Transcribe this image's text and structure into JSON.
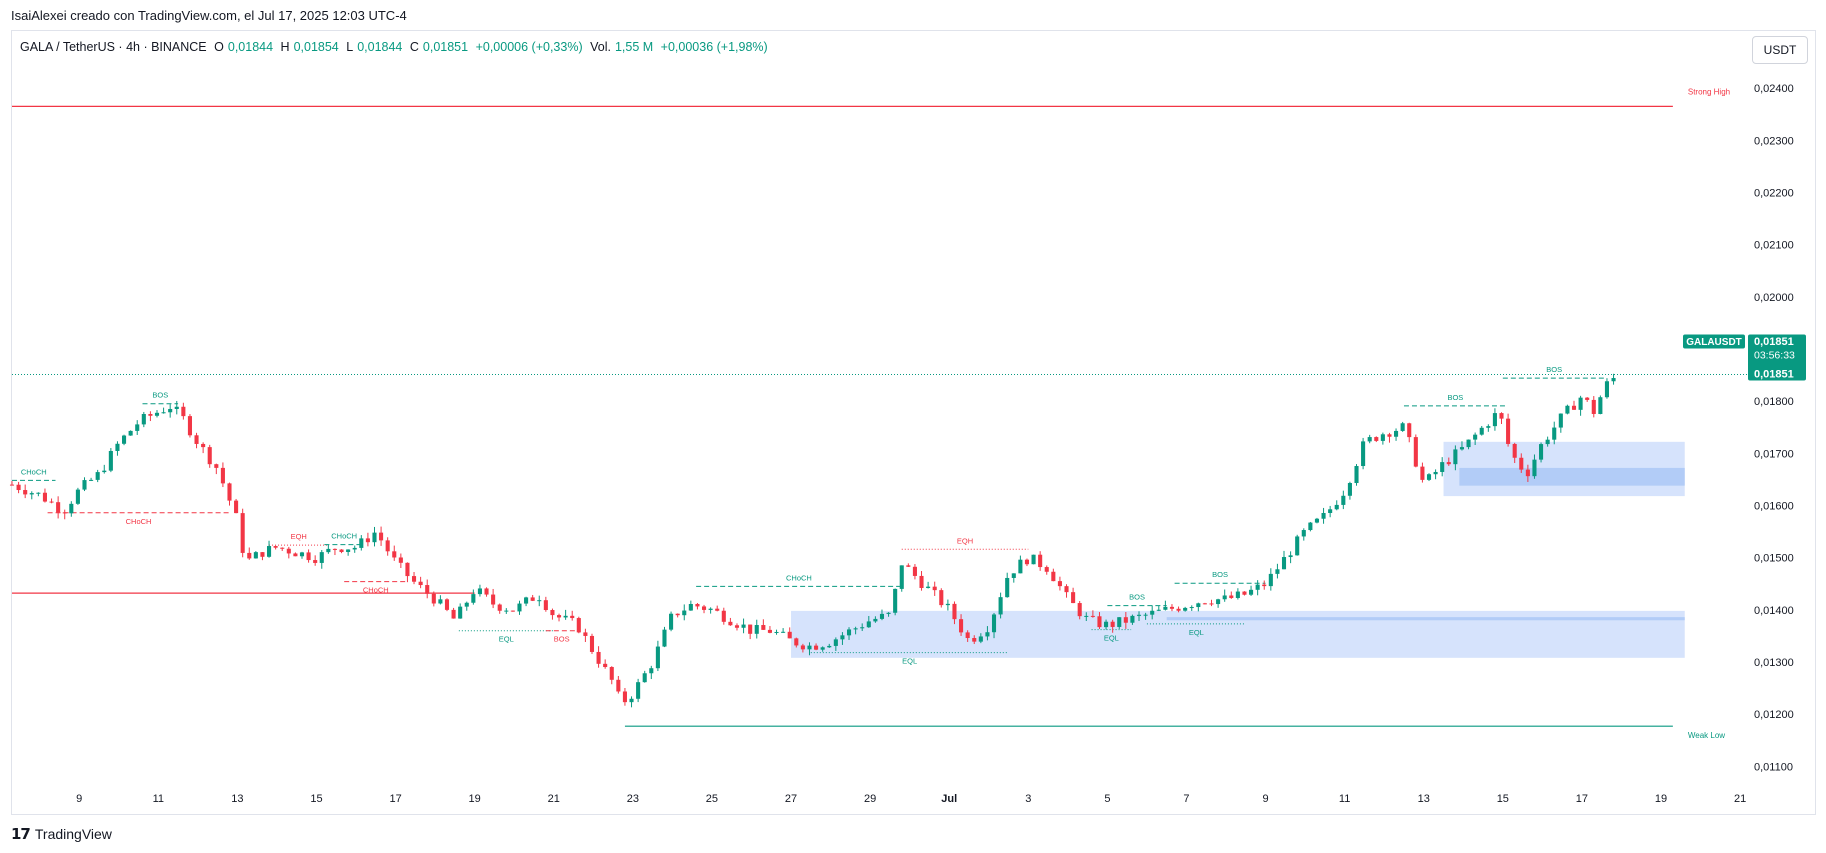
{
  "header": {
    "created_by": "IsaiAlexei creado con TradingView.com, el Jul 17, 2025 12:03 UTC-4"
  },
  "legend": {
    "symbol": "GALA / TetherUS · 4h · BINANCE",
    "o_label": "O",
    "o_val": "0,01844",
    "h_label": "H",
    "h_val": "0,01854",
    "l_label": "L",
    "l_val": "0,01844",
    "c_label": "C",
    "c_val": "0,01851",
    "change": "+0,00006 (+0,33%)",
    "vol_label": "Vol.",
    "vol_val": "1,55 M",
    "vol_change": "+0,00036 (+1,98%)"
  },
  "unit_button": "USDT",
  "branding": "TradingView",
  "colors": {
    "up": "#089981",
    "down": "#f23645",
    "zone": "#c8dafb",
    "zone_dark": "#a9c5f5"
  },
  "chart_data": {
    "type": "candlestick",
    "symbol": "GALAUSDT",
    "interval": "4h",
    "ylim": [
      0.0107,
      0.0245
    ],
    "yticks": [
      "0,02400",
      "0,02300",
      "0,02200",
      "0,02100",
      "0,02000",
      "0,01800",
      "0,01700",
      "0,01600",
      "0,01500",
      "0,01400",
      "0,01300",
      "0,01200",
      "0,01100"
    ],
    "ytick_values": [
      0.024,
      0.023,
      0.022,
      0.021,
      0.02,
      0.018,
      0.017,
      0.016,
      0.015,
      0.014,
      0.013,
      0.012,
      0.011
    ],
    "xticks": [
      "9",
      "11",
      "13",
      "15",
      "17",
      "19",
      "21",
      "23",
      "25",
      "27",
      "29",
      "Jul",
      "3",
      "5",
      "7",
      "9",
      "11",
      "13",
      "15",
      "17",
      "19",
      "21"
    ],
    "xtick_days": [
      0,
      2,
      4,
      6,
      8,
      10,
      12,
      14,
      16,
      18,
      20,
      22,
      24,
      26,
      28,
      30,
      32,
      34,
      36,
      38,
      40,
      42
    ],
    "x_start_day": -1.7,
    "x_end_day": 42.2,
    "last_price_tag": {
      "name": "GALAUSDT",
      "price": "0,01851",
      "countdown": "03:56:33",
      "price2": "0,01851",
      "value": 0.01851
    },
    "key_points": [
      [
        -1.7,
        0.0164
      ],
      [
        -1.0,
        0.0162
      ],
      [
        -0.4,
        0.0159
      ],
      [
        0.0,
        0.0163
      ],
      [
        0.5,
        0.0166
      ],
      [
        1.0,
        0.0172
      ],
      [
        1.5,
        0.0176
      ],
      [
        2.0,
        0.0178
      ],
      [
        2.3,
        0.0179
      ],
      [
        2.6,
        0.0177
      ],
      [
        3.0,
        0.0172
      ],
      [
        3.5,
        0.0167
      ],
      [
        4.0,
        0.0157
      ],
      [
        4.2,
        0.0149
      ],
      [
        4.6,
        0.0151
      ],
      [
        5.0,
        0.0152
      ],
      [
        5.5,
        0.0151
      ],
      [
        6.0,
        0.015
      ],
      [
        6.5,
        0.0152
      ],
      [
        7.0,
        0.0152
      ],
      [
        7.5,
        0.0155
      ],
      [
        8.0,
        0.0149
      ],
      [
        8.5,
        0.0145
      ],
      [
        9.0,
        0.0142
      ],
      [
        9.5,
        0.0138
      ],
      [
        10.0,
        0.0144
      ],
      [
        10.5,
        0.0141
      ],
      [
        11.0,
        0.014
      ],
      [
        11.6,
        0.0143
      ],
      [
        12.0,
        0.0139
      ],
      [
        12.6,
        0.0137
      ],
      [
        13.0,
        0.0132
      ],
      [
        13.5,
        0.0126
      ],
      [
        13.7,
        0.0122
      ],
      [
        14.0,
        0.0124
      ],
      [
        14.5,
        0.013
      ],
      [
        15.0,
        0.0139
      ],
      [
        15.5,
        0.0141
      ],
      [
        16.0,
        0.014
      ],
      [
        16.5,
        0.0138
      ],
      [
        17.0,
        0.0136
      ],
      [
        17.5,
        0.0136
      ],
      [
        18.0,
        0.0134
      ],
      [
        18.5,
        0.0133
      ],
      [
        19.0,
        0.0134
      ],
      [
        19.5,
        0.0136
      ],
      [
        20.0,
        0.0138
      ],
      [
        20.5,
        0.0139
      ],
      [
        20.8,
        0.0149
      ],
      [
        21.2,
        0.0146
      ],
      [
        21.6,
        0.0143
      ],
      [
        22.0,
        0.014
      ],
      [
        22.5,
        0.0134
      ],
      [
        23.0,
        0.0137
      ],
      [
        23.5,
        0.0147
      ],
      [
        24.0,
        0.015
      ],
      [
        24.5,
        0.0148
      ],
      [
        25.0,
        0.0142
      ],
      [
        25.5,
        0.0138
      ],
      [
        26.0,
        0.0137
      ],
      [
        26.5,
        0.0138
      ],
      [
        27.0,
        0.0139
      ],
      [
        27.5,
        0.014
      ],
      [
        28.0,
        0.0141
      ],
      [
        28.5,
        0.0142
      ],
      [
        29.0,
        0.0142
      ],
      [
        29.5,
        0.0143
      ],
      [
        30.0,
        0.0145
      ],
      [
        30.5,
        0.015
      ],
      [
        31.0,
        0.0155
      ],
      [
        31.5,
        0.0158
      ],
      [
        32.0,
        0.0163
      ],
      [
        32.5,
        0.0172
      ],
      [
        33.0,
        0.0174
      ],
      [
        33.5,
        0.0175
      ],
      [
        34.0,
        0.0164
      ],
      [
        34.5,
        0.0168
      ],
      [
        35.0,
        0.0171
      ],
      [
        35.5,
        0.0175
      ],
      [
        35.9,
        0.0178
      ],
      [
        36.2,
        0.017
      ],
      [
        36.6,
        0.0166
      ],
      [
        37.0,
        0.0172
      ],
      [
        37.5,
        0.0177
      ],
      [
        38.0,
        0.0181
      ],
      [
        38.3,
        0.0178
      ],
      [
        38.6,
        0.0183
      ],
      [
        38.9,
        0.0185
      ]
    ],
    "levels": [
      {
        "label": "Strong High",
        "value": 0.02365,
        "color": "#f23645",
        "from_day": -1.7,
        "to_day": 40.3
      },
      {
        "label": "",
        "value": 0.01432,
        "color": "#f23645",
        "from_day": -1.7,
        "to_day": 10.0
      },
      {
        "label": "Weak Low",
        "value": 0.01177,
        "color": "#089981",
        "from_day": 13.8,
        "to_day": 40.3
      }
    ],
    "zones": [
      {
        "from_day": 34.5,
        "to_day": 40.6,
        "low": 0.01618,
        "high": 0.01722,
        "dark_low": 0.01638,
        "dark_high": 0.01672
      },
      {
        "from_day": 18.0,
        "to_day": 40.6,
        "low": 0.01308,
        "high": 0.01398,
        "dark_low": 0.0138,
        "dark_high": 0.01386
      }
    ],
    "structure_lines": [
      {
        "label": "CHoCH",
        "color": "#089981",
        "value": 0.01648,
        "from_day": -1.7,
        "to_day": -0.6
      },
      {
        "label": "CHoCH",
        "color": "#f23645",
        "value": 0.01586,
        "from_day": -0.8,
        "to_day": 3.8
      },
      {
        "label": "BOS",
        "color": "#089981",
        "value": 0.01795,
        "from_day": 1.6,
        "to_day": 2.5
      },
      {
        "label": "EQH",
        "color": "#f23645",
        "value": 0.01524,
        "from_day": 4.8,
        "to_day": 6.3
      },
      {
        "label": "CHoCH",
        "color": "#089981",
        "value": 0.01525,
        "from_day": 6.2,
        "to_day": 7.2
      },
      {
        "label": "CHoCH",
        "color": "#f23645",
        "value": 0.01454,
        "from_day": 6.7,
        "to_day": 8.3
      },
      {
        "label": "EQL",
        "color": "#089981",
        "value": 0.0136,
        "from_day": 9.6,
        "to_day": 12.0
      },
      {
        "label": "BOS",
        "color": "#f23645",
        "value": 0.0136,
        "from_day": 11.8,
        "to_day": 12.6
      },
      {
        "label": "CHoCH",
        "color": "#089981",
        "value": 0.01445,
        "from_day": 15.6,
        "to_day": 20.8
      },
      {
        "label": "EQH",
        "color": "#f23645",
        "value": 0.01516,
        "from_day": 20.8,
        "to_day": 24.0
      },
      {
        "label": "EQL",
        "color": "#089981",
        "value": 0.01318,
        "from_day": 18.5,
        "to_day": 23.5
      },
      {
        "label": "BOS",
        "color": "#089981",
        "value": 0.01408,
        "from_day": 26.0,
        "to_day": 27.5
      },
      {
        "label": "EQL",
        "color": "#089981",
        "value": 0.01362,
        "from_day": 25.6,
        "to_day": 26.6
      },
      {
        "label": "BOS",
        "color": "#089981",
        "value": 0.01451,
        "from_day": 27.7,
        "to_day": 30.0
      },
      {
        "label": "EQL",
        "color": "#089981",
        "value": 0.01373,
        "from_day": 27.0,
        "to_day": 29.5
      },
      {
        "label": "BOS",
        "color": "#089981",
        "value": 0.01791,
        "from_day": 33.5,
        "to_day": 36.1
      },
      {
        "label": "BOS",
        "color": "#089981",
        "value": 0.01844,
        "from_day": 36.0,
        "to_day": 38.6
      }
    ]
  }
}
